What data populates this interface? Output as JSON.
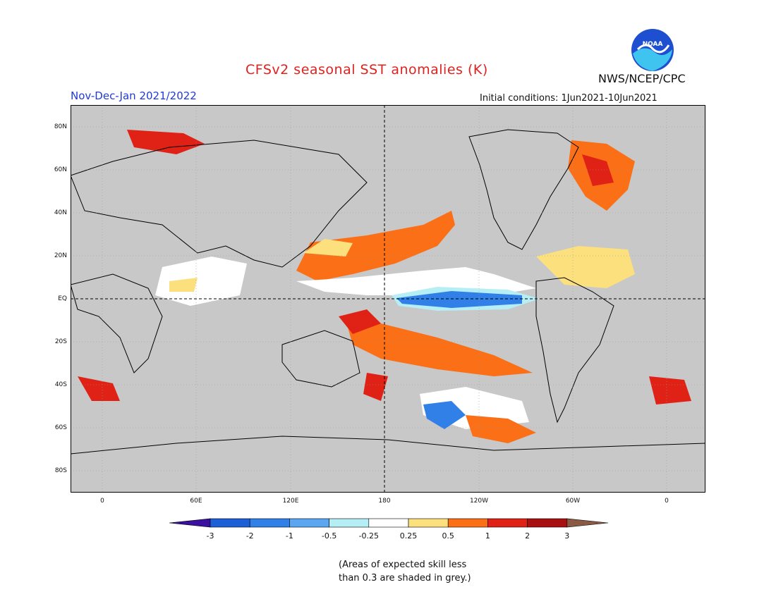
{
  "header": {
    "title": "CFSv2 seasonal SST anomalies (K)",
    "season": "Nov-Dec-Jan 2021/2022",
    "agency": "NWS/NCEP/CPC",
    "initial_conditions": "Initial conditions: 1Jun2021-10Jun2021",
    "logo_text": "NOAA"
  },
  "axes": {
    "lat_labels": [
      "80N",
      "60N",
      "40N",
      "20N",
      "EQ",
      "20S",
      "40S",
      "60S",
      "80S"
    ],
    "lon_labels": [
      "0",
      "60E",
      "120E",
      "180",
      "120W",
      "60W",
      "0"
    ]
  },
  "colorbar": {
    "ticks": [
      "-3",
      "-2",
      "-1",
      "-0.5",
      "-0.25",
      "0.25",
      "0.5",
      "1",
      "2",
      "3"
    ],
    "colors": [
      "#3b0fa0",
      "#1c5fd6",
      "#3080e8",
      "#5aa6f0",
      "#b6eef6",
      "#ffffff",
      "#fbe07d",
      "#fb6f17",
      "#e02216",
      "#a80f10",
      "#8a5a44"
    ]
  },
  "note": {
    "line1": "(Areas of expected skill less",
    "line2": "than 0.3 are shaded in grey.)"
  },
  "colors": {
    "grey_mask": "#c8c8c8",
    "title_red": "#e0221f",
    "season_blue": "#1f3ad6"
  }
}
